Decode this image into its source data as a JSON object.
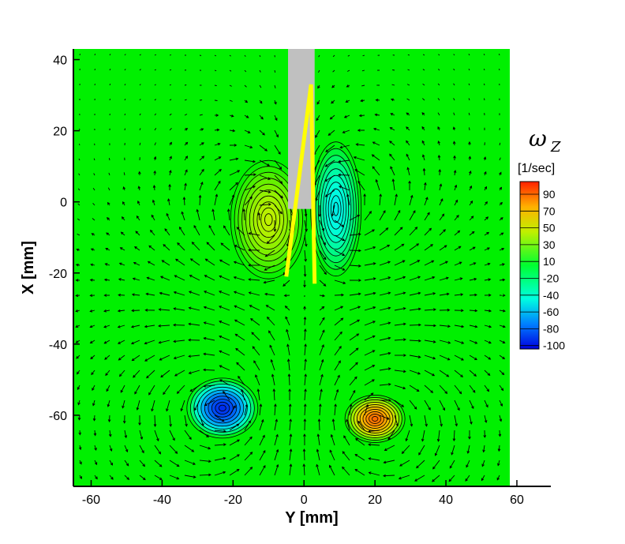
{
  "chart_data": {
    "type": "heatmap",
    "title": "",
    "xlabel": "Y [mm]",
    "ylabel": "X [mm]",
    "xlim": [
      -65,
      58
    ],
    "ylim": [
      -80,
      43
    ],
    "xticks": [
      -60,
      -40,
      -20,
      0,
      20,
      40,
      60
    ],
    "yticks": [
      40,
      20,
      0,
      -20,
      -40,
      -60
    ],
    "grid": false,
    "background_level": 0,
    "colorbar": {
      "symbol": "ω",
      "subscript": "Z",
      "unit": "[1/sec]",
      "range": [
        -100,
        100
      ],
      "tick_labels": [
        "90",
        "70",
        "50",
        "30",
        "10",
        "-20",
        "-40",
        "-60",
        "-80",
        "-100"
      ],
      "colors": [
        "#0000e0",
        "#0060ff",
        "#00c0ff",
        "#00ffd0",
        "#00ff50",
        "#60ff00",
        "#c8f000",
        "#ffe000",
        "#ff9000",
        "#ff2000"
      ]
    },
    "vortices": [
      {
        "x": -23,
        "y": -58,
        "peak": -90
      },
      {
        "x": 20,
        "y": -61,
        "peak": 85
      },
      {
        "x": -10,
        "y": -5,
        "peak": 40
      },
      {
        "x": 9,
        "y": -2,
        "peak": -45
      }
    ],
    "annotations": {
      "body_color": "#c0c0c0",
      "body_x": [
        -4.5,
        3
      ],
      "body_y": [
        -2,
        43
      ],
      "yellow_line": [
        [
          -5,
          -21
        ],
        [
          2,
          33
        ],
        [
          3,
          -23
        ]
      ]
    },
    "vector_field": "velocity arrows"
  }
}
